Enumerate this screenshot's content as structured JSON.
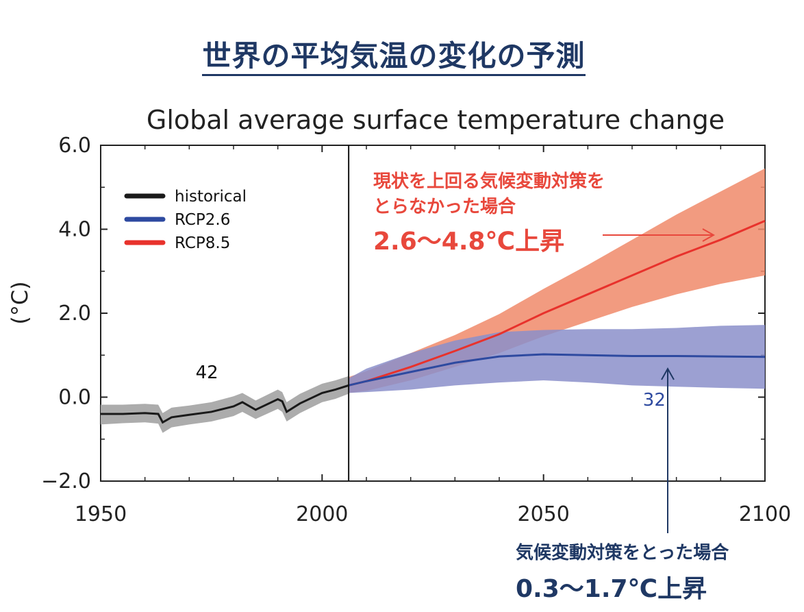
{
  "page_title": "世界の平均気温の変化の予測",
  "annotations": {
    "rcp85_text": "現状を上回る気候変動対策を",
    "rcp85_text2": "とらなかった場合",
    "rcp85_range": "2.6〜4.8℃上昇",
    "rcp26_text": "気候変動対策をとった場合",
    "rcp26_range": "0.3〜1.7℃上昇"
  },
  "colors": {
    "historical_line": "#1a1a1a",
    "historical_band": "#a8a8a8",
    "rcp26_line": "#2e4aa0",
    "rcp26_band": "#8b8fca",
    "rcp85_line": "#e8322c",
    "rcp85_band": "#f08a6a",
    "annotation_red": "#e8483c",
    "annotation_navy": "#1f3864"
  },
  "chart_data": {
    "type": "line",
    "title": "Global average surface temperature change",
    "ylabel": "(°C)",
    "xlabel": "",
    "xlim": [
      1950,
      2100
    ],
    "ylim": [
      -2.0,
      6.0
    ],
    "xticks": [
      1950,
      2000,
      2050,
      2100
    ],
    "yticks": [
      -2.0,
      0.0,
      2.0,
      4.0,
      6.0
    ],
    "ytick_labels": [
      "−2.0",
      "0.0",
      "2.0",
      "4.0",
      "6.0"
    ],
    "divider_year": 2006,
    "legend": {
      "placement": "top-left",
      "entries": [
        "historical",
        "RCP2.6",
        "RCP8.5"
      ]
    },
    "model_counts": [
      {
        "label": "42",
        "x": 1974,
        "y": 0.45,
        "series": "historical"
      },
      {
        "label": "32",
        "x": 2075,
        "y": -0.2,
        "series": "RCP2.6"
      }
    ],
    "series": [
      {
        "name": "historical",
        "x": [
          1950,
          1955,
          1960,
          1963,
          1964,
          1966,
          1970,
          1975,
          1980,
          1982,
          1985,
          1990,
          1991,
          1992,
          1995,
          2000,
          2003,
          2006
        ],
        "y": [
          -0.4,
          -0.4,
          -0.38,
          -0.4,
          -0.6,
          -0.48,
          -0.42,
          -0.35,
          -0.22,
          -0.12,
          -0.3,
          -0.05,
          -0.1,
          -0.35,
          -0.15,
          0.1,
          0.18,
          0.28
        ],
        "lower": [
          -0.65,
          -0.62,
          -0.6,
          -0.63,
          -0.85,
          -0.72,
          -0.65,
          -0.58,
          -0.45,
          -0.35,
          -0.52,
          -0.28,
          -0.35,
          -0.58,
          -0.38,
          -0.12,
          -0.04,
          0.08
        ],
        "upper": [
          -0.18,
          -0.18,
          -0.16,
          -0.18,
          -0.38,
          -0.25,
          -0.2,
          -0.12,
          0.02,
          0.1,
          -0.08,
          0.18,
          0.12,
          -0.12,
          0.08,
          0.32,
          0.4,
          0.5
        ]
      },
      {
        "name": "RCP2.6",
        "x": [
          2006,
          2010,
          2020,
          2030,
          2040,
          2050,
          2060,
          2070,
          2080,
          2090,
          2100
        ],
        "y": [
          0.28,
          0.38,
          0.6,
          0.82,
          0.97,
          1.02,
          1.0,
          0.98,
          0.98,
          0.97,
          0.96
        ],
        "lower": [
          0.1,
          0.12,
          0.18,
          0.28,
          0.35,
          0.4,
          0.35,
          0.28,
          0.25,
          0.22,
          0.2
        ],
        "upper": [
          0.45,
          0.68,
          1.05,
          1.35,
          1.55,
          1.6,
          1.62,
          1.62,
          1.65,
          1.7,
          1.72
        ]
      },
      {
        "name": "RCP8.5",
        "x": [
          2006,
          2010,
          2020,
          2030,
          2040,
          2050,
          2060,
          2070,
          2080,
          2090,
          2100
        ],
        "y": [
          0.28,
          0.38,
          0.72,
          1.1,
          1.5,
          2.0,
          2.45,
          2.9,
          3.35,
          3.75,
          4.2
        ],
        "lower": [
          0.1,
          0.15,
          0.4,
          0.72,
          1.05,
          1.45,
          1.8,
          2.15,
          2.45,
          2.7,
          2.9
        ],
        "upper": [
          0.48,
          0.62,
          1.05,
          1.48,
          1.98,
          2.58,
          3.15,
          3.75,
          4.35,
          4.9,
          5.45
        ]
      }
    ]
  }
}
